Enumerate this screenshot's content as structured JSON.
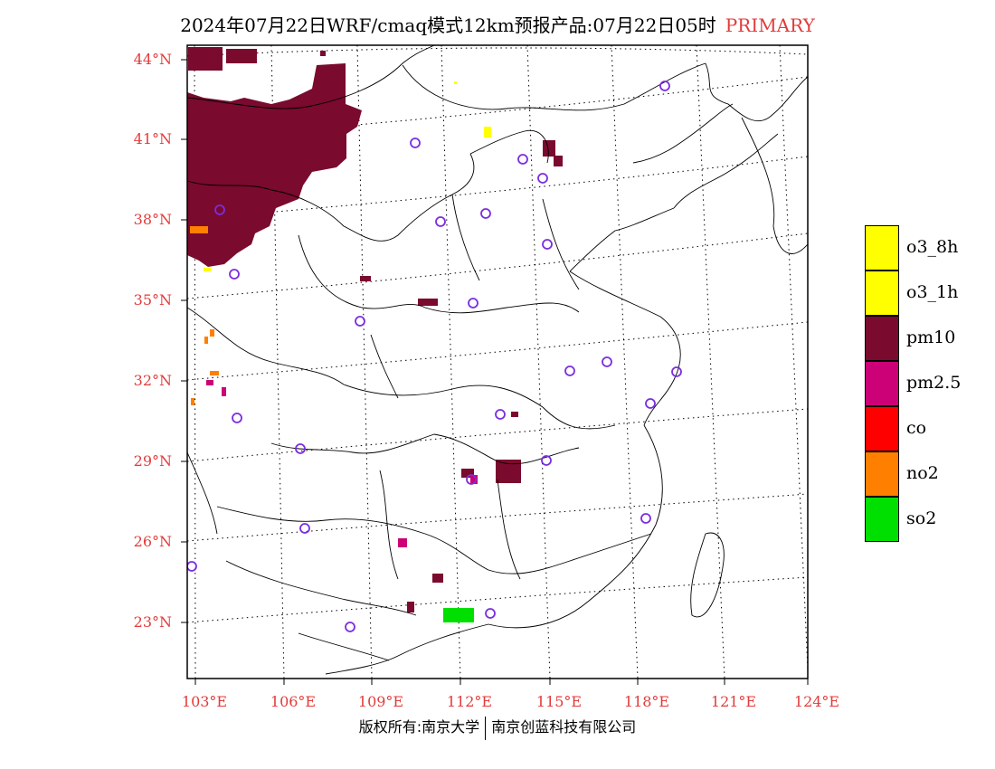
{
  "title": "2024年07月22日WRF/cmaq模式12km预报产品:07月22日05时",
  "title_tag": "PRIMARY",
  "lat_labels": [
    "44°N",
    "41°N",
    "38°N",
    "35°N",
    "32°N",
    "29°N",
    "26°N",
    "23°N"
  ],
  "lon_labels": [
    "103°E",
    "106°E",
    "109°E",
    "112°E",
    "115°E",
    "118°E",
    "121°E",
    "124°E"
  ],
  "legend": [
    {
      "label": "o3_8h",
      "color": "#ffff00"
    },
    {
      "label": "o3_1h",
      "color": "#ffff00"
    },
    {
      "label": "pm10",
      "color": "#7a0a2e"
    },
    {
      "label": "pm2.5",
      "color": "#cc0077"
    },
    {
      "label": "co",
      "color": "#ff0000"
    },
    {
      "label": "no2",
      "color": "#ff7f00"
    },
    {
      "label": "so2",
      "color": "#00e000"
    }
  ],
  "footer_left": "版权所有:南京大学",
  "footer_right": "南京创蓝科技有限公司"
}
